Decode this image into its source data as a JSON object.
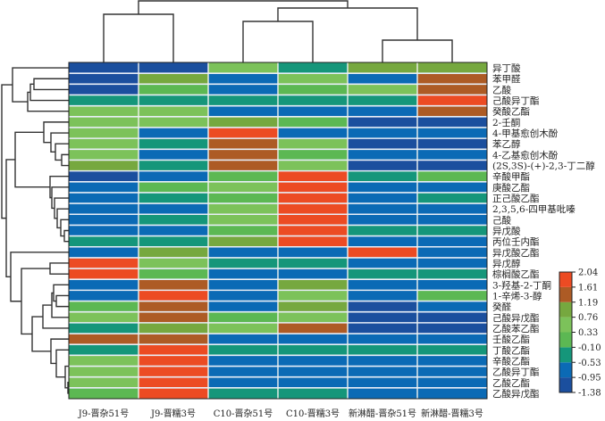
{
  "chart_data": {
    "type": "heatmap",
    "title": "",
    "xlabel": "",
    "ylabel": "",
    "columns": [
      "J9-晋杂51号",
      "J9-晋糯3号",
      "C10-晋杂51号",
      "C10-晋糯3号",
      "新淋醋-晋杂51号",
      "新淋醋-晋糯3号"
    ],
    "rows": [
      "异丁酸",
      "苯甲醛",
      "乙酸",
      "己酸异丁酯",
      "癸酸乙酯",
      "2-壬酮",
      "4-甲基愈创木酚",
      "苯乙醇",
      "4-乙基愈创木酚",
      "(2S,3S)-(+)-2,3-丁二醇",
      "辛酸甲酯",
      "庚酸乙酯",
      "正己酸乙酯",
      "2,3,5,6-四甲基吡嗪",
      "己酸",
      "异戊酸",
      "丙位壬内酯",
      "异戊酸乙酯",
      "异戊醇",
      "棕榈酸乙酯",
      "3-羟基-2-丁酮",
      "1-辛烯-3-醇",
      "癸醛",
      "己酸异戊酯",
      "乙酸苯乙酯",
      "壬酸乙酯",
      "丁酸乙酯",
      "辛酸乙酯",
      "乙酸异丁酯",
      "乙酸乙酯",
      "乙酸异戊酯"
    ],
    "color_scale": {
      "ticks": [
        "2.04",
        "1.61",
        "1.19",
        "0.76",
        "0.33",
        "-0.10",
        "-0.53",
        "-0.95",
        "-1.38"
      ],
      "range": [
        -1.38,
        2.04
      ],
      "band_colors": [
        "#1b4f9e",
        "#0b6ab5",
        "#15967a",
        "#5cb853",
        "#7cc25a",
        "#76a83f",
        "#ad5b25",
        "#ec4b23"
      ]
    },
    "values_band_index": [
      [
        0,
        0,
        4,
        2,
        5,
        5
      ],
      [
        0,
        5,
        1,
        4,
        1,
        6
      ],
      [
        0,
        3,
        1,
        3,
        4,
        6
      ],
      [
        2,
        2,
        2,
        2,
        2,
        7
      ],
      [
        4,
        4,
        1,
        1,
        1,
        6
      ],
      [
        4,
        4,
        5,
        3,
        0,
        0
      ],
      [
        4,
        1,
        7,
        1,
        1,
        1
      ],
      [
        4,
        2,
        6,
        4,
        0,
        0
      ],
      [
        4,
        1,
        6,
        3,
        1,
        1
      ],
      [
        5,
        2,
        6,
        4,
        0,
        0
      ],
      [
        0,
        1,
        3,
        7,
        2,
        3
      ],
      [
        1,
        3,
        4,
        7,
        1,
        1
      ],
      [
        1,
        2,
        3,
        7,
        1,
        2
      ],
      [
        1,
        1,
        4,
        7,
        1,
        1
      ],
      [
        1,
        2,
        4,
        7,
        1,
        1
      ],
      [
        1,
        1,
        3,
        7,
        2,
        2
      ],
      [
        2,
        2,
        5,
        7,
        1,
        1
      ],
      [
        1,
        5,
        1,
        1,
        7,
        1
      ],
      [
        7,
        4,
        2,
        2,
        1,
        1
      ],
      [
        7,
        3,
        1,
        1,
        2,
        2
      ],
      [
        1,
        6,
        1,
        5,
        1,
        1
      ],
      [
        1,
        7,
        1,
        4,
        1,
        3
      ],
      [
        3,
        6,
        1,
        5,
        0,
        1
      ],
      [
        4,
        6,
        3,
        4,
        0,
        0
      ],
      [
        2,
        5,
        4,
        6,
        0,
        0
      ],
      [
        6,
        6,
        1,
        1,
        1,
        1
      ],
      [
        2,
        7,
        2,
        2,
        2,
        2
      ],
      [
        4,
        7,
        1,
        1,
        1,
        1
      ],
      [
        4,
        7,
        1,
        1,
        1,
        1
      ],
      [
        4,
        7,
        1,
        1,
        1,
        1
      ],
      [
        3,
        7,
        2,
        2,
        1,
        1
      ]
    ],
    "legend": "right-bottom",
    "column_dendrogram": "((J9-晋杂51号,J9-晋糯3号),((C10-晋杂51号,C10-晋糯3号),(新淋醋-晋杂51号,新淋醋-晋糯3号)))",
    "row_dendrogram": true
  }
}
